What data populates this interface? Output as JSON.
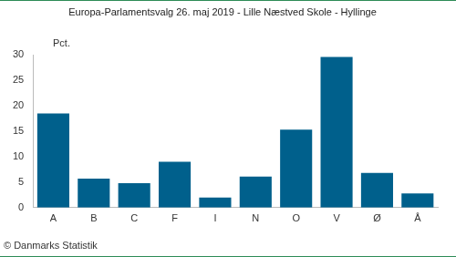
{
  "chart_data": {
    "type": "bar",
    "title": "Europa-Parlamentsvalg 26. maj 2019 - Lille Næstved Skole - Hyllinge",
    "ylabel": "Pct.",
    "credit": "© Danmarks Statistik",
    "categories": [
      "A",
      "B",
      "C",
      "F",
      "I",
      "N",
      "O",
      "V",
      "Ø",
      "Å"
    ],
    "values": [
      18.5,
      5.7,
      4.8,
      9.0,
      2.0,
      6.1,
      15.3,
      29.6,
      6.8,
      2.8
    ],
    "color": "#00608c",
    "ylim": [
      0,
      30
    ],
    "yticks": [
      0,
      5,
      10,
      15,
      20,
      25,
      30
    ],
    "grid": false
  }
}
